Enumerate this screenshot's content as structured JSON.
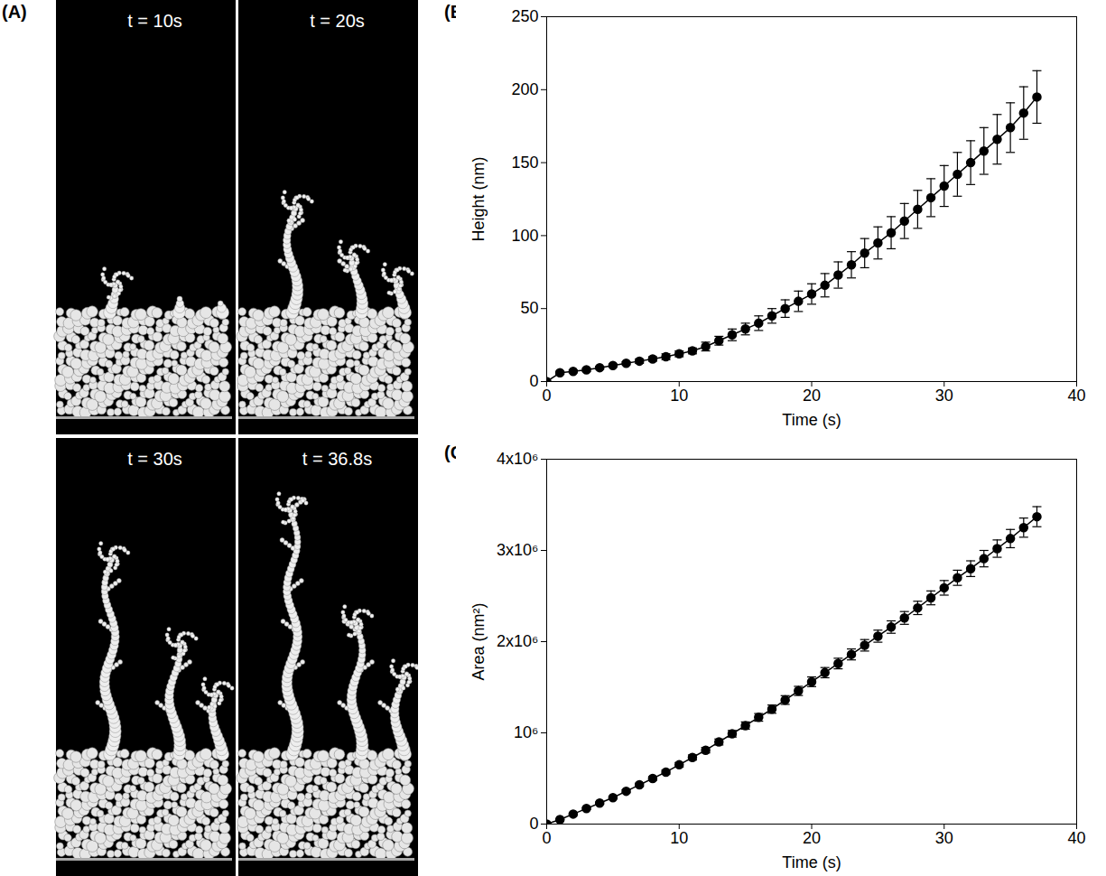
{
  "panel_a": {
    "panel": "(A)",
    "type": "image",
    "frames": [
      "t = 10s",
      "t = 20s",
      "t = 30s",
      "t = 36.8s"
    ]
  },
  "chart_data": [
    {
      "panel": "(B)",
      "type": "line",
      "x_label": "Time (s)",
      "y_label": "Height (nm)",
      "color": "#000000",
      "marker": "circle",
      "line_style": "solid",
      "grid": false,
      "xlim": [
        0,
        40
      ],
      "xticks": [
        0,
        10,
        20,
        30,
        40
      ],
      "ylim": [
        0,
        250
      ],
      "yticks": [
        0,
        50,
        100,
        150,
        200,
        250
      ],
      "x": [
        0,
        1,
        2,
        3,
        4,
        5,
        6,
        7,
        8,
        9,
        10,
        11,
        12,
        13,
        14,
        15,
        16,
        17,
        18,
        19,
        20,
        21,
        22,
        23,
        24,
        25,
        26,
        27,
        28,
        29,
        30,
        31,
        32,
        33,
        34,
        35,
        36,
        37
      ],
      "values": [
        0,
        6,
        7,
        8,
        9.5,
        11,
        12.5,
        14,
        15.5,
        17,
        19,
        21,
        24,
        28,
        32,
        36,
        40,
        45,
        50,
        55,
        60,
        66,
        73,
        80,
        88,
        95,
        102,
        110,
        118,
        126,
        134,
        142,
        150,
        158,
        166,
        174,
        184,
        195
      ],
      "errors": [
        0,
        1,
        1,
        1,
        1,
        1,
        1,
        1.5,
        1.5,
        2,
        2,
        2,
        3,
        3,
        4,
        4,
        5,
        5,
        6,
        7,
        7,
        8,
        9,
        9,
        10,
        11,
        11,
        12,
        13,
        13,
        14,
        15,
        15,
        16,
        17,
        17,
        18,
        18
      ]
    },
    {
      "panel": "(C)",
      "type": "line",
      "x_label": "Time (s)",
      "y_label": "Area (nm²)",
      "color": "#000000",
      "marker": "circle",
      "line_style": "solid",
      "grid": false,
      "xlim": [
        0,
        40
      ],
      "xticks": [
        0,
        10,
        20,
        30,
        40
      ],
      "ylim": [
        0,
        4000000
      ],
      "yticks": [
        0,
        {
          "value": 1000000,
          "label": "10⁶"
        },
        {
          "value": 2000000,
          "label": "2x10⁶"
        },
        {
          "value": 3000000,
          "label": "3x10⁶"
        },
        {
          "value": 4000000,
          "label": "4x10⁶"
        }
      ],
      "x": [
        0,
        1,
        2,
        3,
        4,
        5,
        6,
        7,
        8,
        9,
        10,
        11,
        12,
        13,
        14,
        15,
        16,
        17,
        18,
        19,
        20,
        21,
        22,
        23,
        24,
        25,
        26,
        27,
        28,
        29,
        30,
        31,
        32,
        33,
        34,
        35,
        36,
        37
      ],
      "values": [
        0,
        50000,
        110000,
        170000,
        230000,
        290000,
        360000,
        430000,
        500000,
        570000,
        650000,
        730000,
        810000,
        900000,
        990000,
        1080000,
        1170000,
        1260000,
        1360000,
        1460000,
        1560000,
        1660000,
        1760000,
        1860000,
        1960000,
        2060000,
        2160000,
        2260000,
        2370000,
        2480000,
        2590000,
        2700000,
        2800000,
        2910000,
        3020000,
        3130000,
        3250000,
        3370000
      ],
      "errors": [
        0,
        5000,
        8000,
        10000,
        12000,
        14000,
        16000,
        18000,
        20000,
        22000,
        25000,
        28000,
        30000,
        33000,
        36000,
        40000,
        42000,
        45000,
        48000,
        50000,
        53000,
        56000,
        58000,
        60000,
        63000,
        66000,
        68000,
        70000,
        73000,
        76000,
        80000,
        83000,
        86000,
        90000,
        95000,
        100000,
        105000,
        110000
      ]
    }
  ]
}
